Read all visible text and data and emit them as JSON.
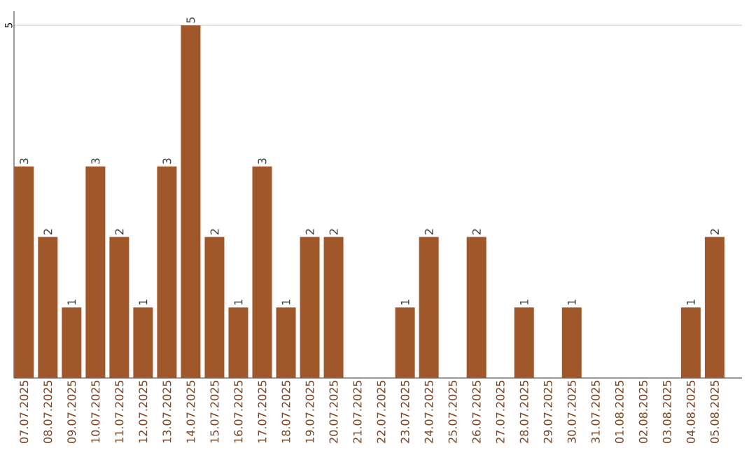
{
  "chart_data": {
    "type": "bar",
    "categories": [
      "07.07.2025",
      "08.07.2025",
      "09.07.2025",
      "10.07.2025",
      "11.07.2025",
      "12.07.2025",
      "13.07.2025",
      "14.07.2025",
      "15.07.2025",
      "16.07.2025",
      "17.07.2025",
      "18.07.2025",
      "19.07.2025",
      "20.07.2025",
      "21.07.2025",
      "22.07.2025",
      "23.07.2025",
      "24.07.2025",
      "25.07.2025",
      "26.07.2025",
      "27.07.2025",
      "28.07.2025",
      "29.07.2025",
      "30.07.2025",
      "31.07.2025",
      "01.08.2025",
      "02.08.2025",
      "03.08.2025",
      "04.08.2025",
      "05.08.2025"
    ],
    "values": [
      3,
      2,
      1,
      3,
      2,
      1,
      3,
      5,
      2,
      1,
      3,
      1,
      2,
      2,
      0,
      0,
      1,
      2,
      0,
      2,
      0,
      1,
      0,
      1,
      0,
      0,
      0,
      0,
      1,
      2
    ],
    "value_labels": [
      "3",
      "2",
      "1",
      "3",
      "2",
      "1",
      "3",
      "5",
      "2",
      "1",
      "3",
      "1",
      "2",
      "2",
      null,
      null,
      "1",
      "2",
      null,
      "2",
      null,
      "1",
      null,
      "1",
      null,
      null,
      null,
      null,
      "1",
      "2"
    ],
    "color": "#a0572a",
    "ylim": [
      0,
      5.2
    ],
    "yticks": [
      5
    ],
    "grid": "y"
  }
}
